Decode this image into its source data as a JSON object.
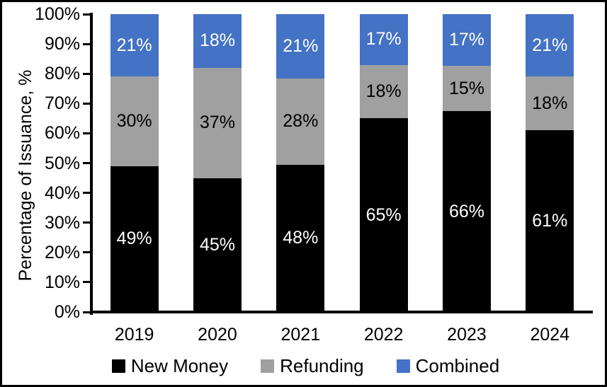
{
  "chart_data": {
    "type": "bar",
    "stacked": true,
    "normalize_to_100": true,
    "title": "",
    "xlabel": "",
    "ylabel": "Percentage of Issuance, %",
    "categories": [
      "2019",
      "2020",
      "2021",
      "2022",
      "2023",
      "2024"
    ],
    "series": [
      {
        "name": "New Money",
        "color": "#000000",
        "label_color": "#ffffff",
        "values": [
          49,
          45,
          48,
          65,
          66,
          61
        ]
      },
      {
        "name": "Refunding",
        "color": "#a0a0a0",
        "label_color": "#000000",
        "values": [
          30,
          37,
          28,
          18,
          15,
          18
        ]
      },
      {
        "name": "Combined",
        "color": "#4472c4",
        "label_color": "#ffffff",
        "values": [
          21,
          18,
          21,
          17,
          17,
          21
        ]
      }
    ],
    "value_suffix": "%",
    "y_ticks": [
      "0%",
      "10%",
      "20%",
      "30%",
      "40%",
      "50%",
      "60%",
      "70%",
      "80%",
      "90%",
      "100%"
    ],
    "ylim": [
      0,
      100
    ],
    "grid": false,
    "legend_position": "bottom",
    "axis_color": "#000000",
    "background_color": "#ffffff"
  }
}
